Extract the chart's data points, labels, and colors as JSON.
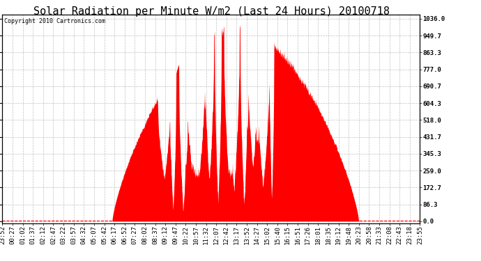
{
  "title": "Solar Radiation per Minute W/m2 (Last 24 Hours) 20100718",
  "copyright_text": "Copyright 2010 Cartronics.com",
  "y_ticks": [
    0.0,
    86.3,
    172.7,
    259.0,
    345.3,
    431.7,
    518.0,
    604.3,
    690.7,
    777.0,
    863.3,
    949.7,
    1036.0
  ],
  "y_max": 1036.0,
  "y_min": 0.0,
  "x_labels": [
    "23:52",
    "00:27",
    "01:02",
    "01:37",
    "02:12",
    "02:47",
    "03:22",
    "03:57",
    "04:32",
    "05:07",
    "05:42",
    "06:17",
    "06:52",
    "07:27",
    "08:02",
    "08:37",
    "09:12",
    "09:47",
    "10:22",
    "10:57",
    "11:32",
    "12:07",
    "12:42",
    "13:17",
    "13:52",
    "14:27",
    "15:02",
    "15:40",
    "16:15",
    "16:51",
    "17:26",
    "18:01",
    "18:35",
    "19:12",
    "19:48",
    "20:23",
    "20:58",
    "21:33",
    "22:08",
    "22:43",
    "23:18",
    "23:55"
  ],
  "background_color": "#ffffff",
  "plot_bg_color": "#ffffff",
  "bar_color": "#ff0000",
  "grid_color": "#b0b0b0",
  "title_color": "#000000",
  "dashed_line_color": "#ff0000",
  "title_fontsize": 11,
  "tick_fontsize": 6.5,
  "copyright_fontsize": 6.0
}
